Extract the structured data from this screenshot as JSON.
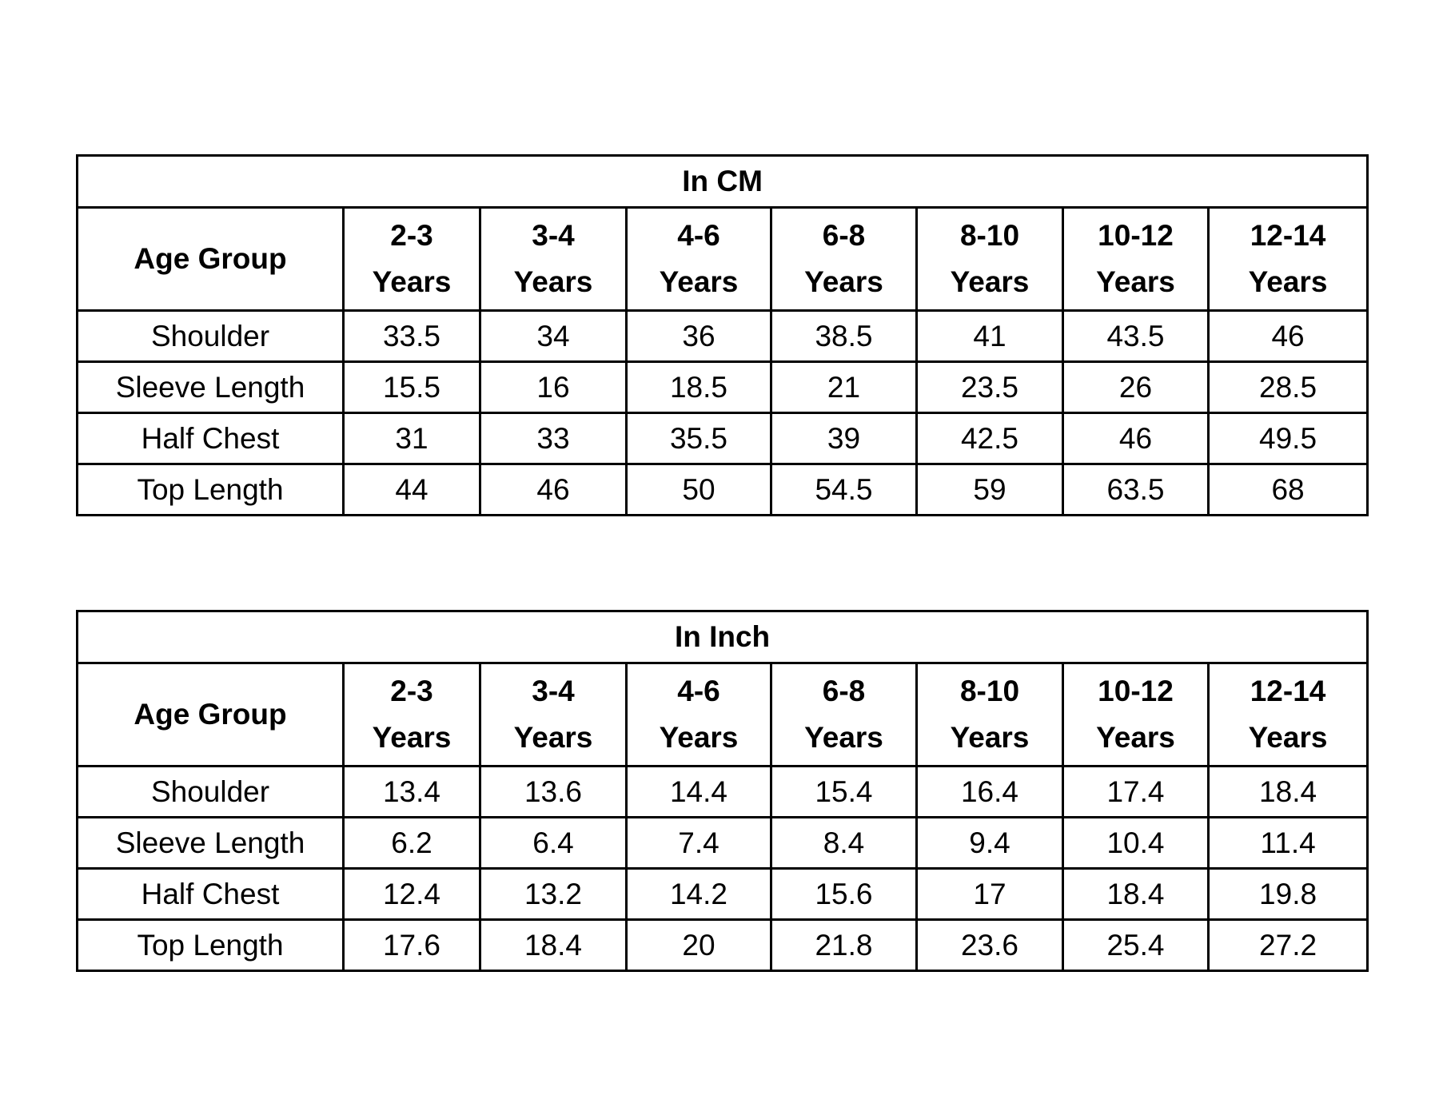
{
  "tables": [
    {
      "title": "In CM",
      "header": {
        "label": "Age Group",
        "columns": [
          [
            "2-3",
            "Years"
          ],
          [
            "3-4",
            "Years"
          ],
          [
            "4-6",
            "Years"
          ],
          [
            "6-8",
            "Years"
          ],
          [
            "8-10",
            "Years"
          ],
          [
            "10-12",
            "Years"
          ],
          [
            "12-14",
            "Years"
          ]
        ]
      },
      "rows": [
        {
          "label": "Shoulder",
          "values": [
            33.5,
            34,
            36,
            38.5,
            41,
            43.5,
            46
          ]
        },
        {
          "label": "Sleeve Length",
          "values": [
            15.5,
            16,
            18.5,
            21,
            23.5,
            26,
            28.5
          ]
        },
        {
          "label": "Half Chest",
          "values": [
            31,
            33,
            35.5,
            39,
            42.5,
            46,
            49.5
          ]
        },
        {
          "label": "Top Length",
          "values": [
            44,
            46,
            50,
            54.5,
            59,
            63.5,
            68
          ]
        }
      ]
    },
    {
      "title": "In Inch",
      "header": {
        "label": "Age Group",
        "columns": [
          [
            "2-3",
            "Years"
          ],
          [
            "3-4",
            "Years"
          ],
          [
            "4-6",
            "Years"
          ],
          [
            "6-8",
            "Years"
          ],
          [
            "8-10",
            "Years"
          ],
          [
            "10-12",
            "Years"
          ],
          [
            "12-14",
            "Years"
          ]
        ]
      },
      "rows": [
        {
          "label": "Shoulder",
          "values": [
            13.4,
            13.6,
            14.4,
            15.4,
            16.4,
            17.4,
            18.4
          ]
        },
        {
          "label": "Sleeve Length",
          "values": [
            6.2,
            6.4,
            7.4,
            8.4,
            9.4,
            10.4,
            11.4
          ]
        },
        {
          "label": "Half Chest",
          "values": [
            12.4,
            13.2,
            14.2,
            15.6,
            17,
            18.4,
            19.8
          ]
        },
        {
          "label": "Top Length",
          "values": [
            17.6,
            18.4,
            20,
            21.8,
            23.6,
            25.4,
            27.2
          ]
        }
      ]
    }
  ]
}
